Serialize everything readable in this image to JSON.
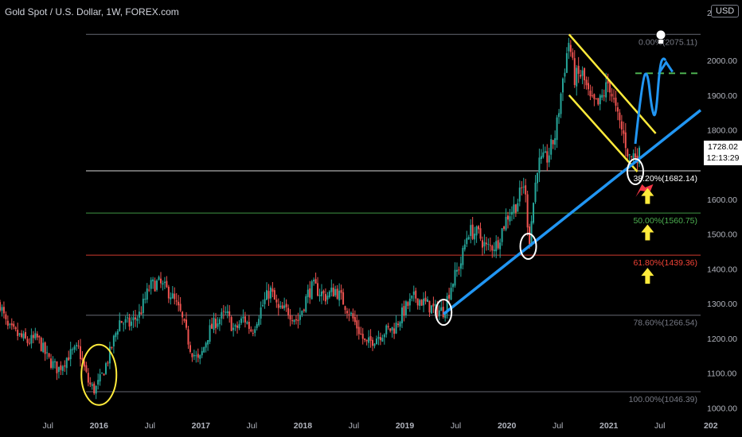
{
  "header": {
    "title": "Gold Spot / U.S. Dollar, 1W, FOREX.com",
    "currency": "USD"
  },
  "price_tag": {
    "price": "1728.02",
    "countdown": "12:13:29"
  },
  "chart_data": {
    "type": "candlestick",
    "symbol": "Gold Spot / U.S. Dollar",
    "interval": "1W",
    "ylim": [
      980,
      2110
    ],
    "y_ticks": [
      {
        "label": "2000.00",
        "value": 2000
      },
      {
        "label": "1900.00",
        "value": 1900
      },
      {
        "label": "1800.00",
        "value": 1800
      },
      {
        "label": "1600.00",
        "value": 1600
      },
      {
        "label": "1500.00",
        "value": 1500
      },
      {
        "label": "1400.00",
        "value": 1400
      },
      {
        "label": "1300.00",
        "value": 1300
      },
      {
        "label": "1200.00",
        "value": 1200
      },
      {
        "label": "1100.00",
        "value": 1100
      },
      {
        "label": "1000.00",
        "value": 1000
      }
    ],
    "y_tick_partial": [
      {
        "label": "2",
        "value": 2100
      }
    ],
    "x_ticks": [
      {
        "label": "Jul",
        "t": 2015.5
      },
      {
        "label": "2016",
        "t": 2016.0
      },
      {
        "label": "Jul",
        "t": 2016.5
      },
      {
        "label": "2017",
        "t": 2017.0
      },
      {
        "label": "Jul",
        "t": 2017.5
      },
      {
        "label": "2018",
        "t": 2018.0
      },
      {
        "label": "Jul",
        "t": 2018.5
      },
      {
        "label": "2019",
        "t": 2019.0
      },
      {
        "label": "Jul",
        "t": 2019.5
      },
      {
        "label": "2020",
        "t": 2020.0
      },
      {
        "label": "Jul",
        "t": 2020.5
      },
      {
        "label": "2021",
        "t": 2021.0
      },
      {
        "label": "Jul",
        "t": 2021.5
      },
      {
        "label": "202",
        "t": 2022.0
      }
    ],
    "xlim": [
      2015.03,
      2021.9
    ],
    "price_path": [
      [
        2015.03,
        1300
      ],
      [
        2015.1,
        1230
      ],
      [
        2015.2,
        1210
      ],
      [
        2015.3,
        1190
      ],
      [
        2015.4,
        1200
      ],
      [
        2015.5,
        1140
      ],
      [
        2015.6,
        1110
      ],
      [
        2015.7,
        1150
      ],
      [
        2015.8,
        1170
      ],
      [
        2015.9,
        1070
      ],
      [
        2015.96,
        1050
      ],
      [
        2016.02,
        1085
      ],
      [
        2016.1,
        1150
      ],
      [
        2016.2,
        1250
      ],
      [
        2016.3,
        1240
      ],
      [
        2016.4,
        1270
      ],
      [
        2016.5,
        1350
      ],
      [
        2016.58,
        1360
      ],
      [
        2016.7,
        1330
      ],
      [
        2016.8,
        1270
      ],
      [
        2016.9,
        1170
      ],
      [
        2016.98,
        1130
      ],
      [
        2017.08,
        1220
      ],
      [
        2017.15,
        1250
      ],
      [
        2017.25,
        1270
      ],
      [
        2017.33,
        1220
      ],
      [
        2017.42,
        1260
      ],
      [
        2017.5,
        1220
      ],
      [
        2017.58,
        1280
      ],
      [
        2017.68,
        1340
      ],
      [
        2017.76,
        1280
      ],
      [
        2017.85,
        1280
      ],
      [
        2017.95,
        1250
      ],
      [
        2018.05,
        1330
      ],
      [
        2018.1,
        1350
      ],
      [
        2018.22,
        1320
      ],
      [
        2018.32,
        1340
      ],
      [
        2018.42,
        1295
      ],
      [
        2018.52,
        1240
      ],
      [
        2018.62,
        1180
      ],
      [
        2018.7,
        1200
      ],
      [
        2018.8,
        1220
      ],
      [
        2018.9,
        1230
      ],
      [
        2019.0,
        1285
      ],
      [
        2019.1,
        1320
      ],
      [
        2019.2,
        1300
      ],
      [
        2019.3,
        1280
      ],
      [
        2019.38,
        1280
      ],
      [
        2019.45,
        1350
      ],
      [
        2019.55,
        1420
      ],
      [
        2019.62,
        1510
      ],
      [
        2019.72,
        1500
      ],
      [
        2019.8,
        1460
      ],
      [
        2019.9,
        1470
      ],
      [
        2020.0,
        1550
      ],
      [
        2020.1,
        1590
      ],
      [
        2020.17,
        1650
      ],
      [
        2020.22,
        1480
      ],
      [
        2020.3,
        1700
      ],
      [
        2020.4,
        1720
      ],
      [
        2020.48,
        1790
      ],
      [
        2020.55,
        1950
      ],
      [
        2020.61,
        2060
      ],
      [
        2020.66,
        1950
      ],
      [
        2020.74,
        1960
      ],
      [
        2020.82,
        1880
      ],
      [
        2020.9,
        1870
      ],
      [
        2021.0,
        1940
      ],
      [
        2021.08,
        1840
      ],
      [
        2021.15,
        1780
      ],
      [
        2021.2,
        1720
      ],
      [
        2021.25,
        1730
      ],
      [
        2021.3,
        1728
      ]
    ],
    "fibonacci": [
      {
        "label": "0.00%(2075.11)",
        "value": 2075.11,
        "color": "#787b86"
      },
      {
        "label": "38.20%(1682.14)",
        "value": 1682.14,
        "color": "#ffffff"
      },
      {
        "label": "50.00%(1560.75)",
        "value": 1560.75,
        "color": "#4caf50"
      },
      {
        "label": "61.80%(1439.36)",
        "value": 1439.36,
        "color": "#f44336"
      },
      {
        "label": "78.60%(1266.54)",
        "value": 1266.54,
        "color": "#787b86"
      },
      {
        "label": "100.00%(1046.39)",
        "value": 1046.39,
        "color": "#787b86"
      }
    ],
    "trendline": {
      "color": "#2196f3",
      "from": [
        2019.38,
        1270
      ],
      "to": [
        2021.9,
        1857
      ]
    },
    "channel": {
      "color": "#ffeb3b",
      "upper": [
        [
          2020.61,
          2075
        ],
        [
          2021.46,
          1790
        ]
      ],
      "lower": [
        [
          2020.61,
          1900
        ],
        [
          2021.28,
          1680
        ]
      ]
    },
    "target_dashed": {
      "value": 1963,
      "color": "#4caf50",
      "from": 2021.26,
      "to": 2021.9
    },
    "projection": {
      "color": "#2196f3",
      "path": [
        [
          2021.26,
          1760
        ],
        [
          2021.33,
          1950
        ],
        [
          2021.38,
          1970
        ],
        [
          2021.42,
          1860
        ],
        [
          2021.46,
          1830
        ],
        [
          2021.5,
          1990
        ],
        [
          2021.54,
          2010
        ],
        [
          2021.57,
          1990
        ]
      ]
    },
    "circles": [
      {
        "t": 2019.38,
        "v": 1275,
        "color": "#ffffff"
      },
      {
        "t": 2020.21,
        "v": 1465,
        "color": "#ffffff"
      },
      {
        "t": 2021.26,
        "v": 1680,
        "color": "#ffffff"
      },
      {
        "t": 2016.0,
        "v": 1095,
        "color": "#ffeb3b"
      }
    ],
    "arrows": [
      {
        "t": 2021.38,
        "v": 1610,
        "color": "#ffeb3b"
      },
      {
        "t": 2021.38,
        "v": 1505,
        "color": "#ffeb3b"
      },
      {
        "t": 2021.38,
        "v": 1380,
        "color": "#ffeb3b"
      }
    ],
    "colors": {
      "up": "#26a69a",
      "down": "#ef5350",
      "background": "#000000",
      "axis_text": "#b2b5be"
    }
  }
}
